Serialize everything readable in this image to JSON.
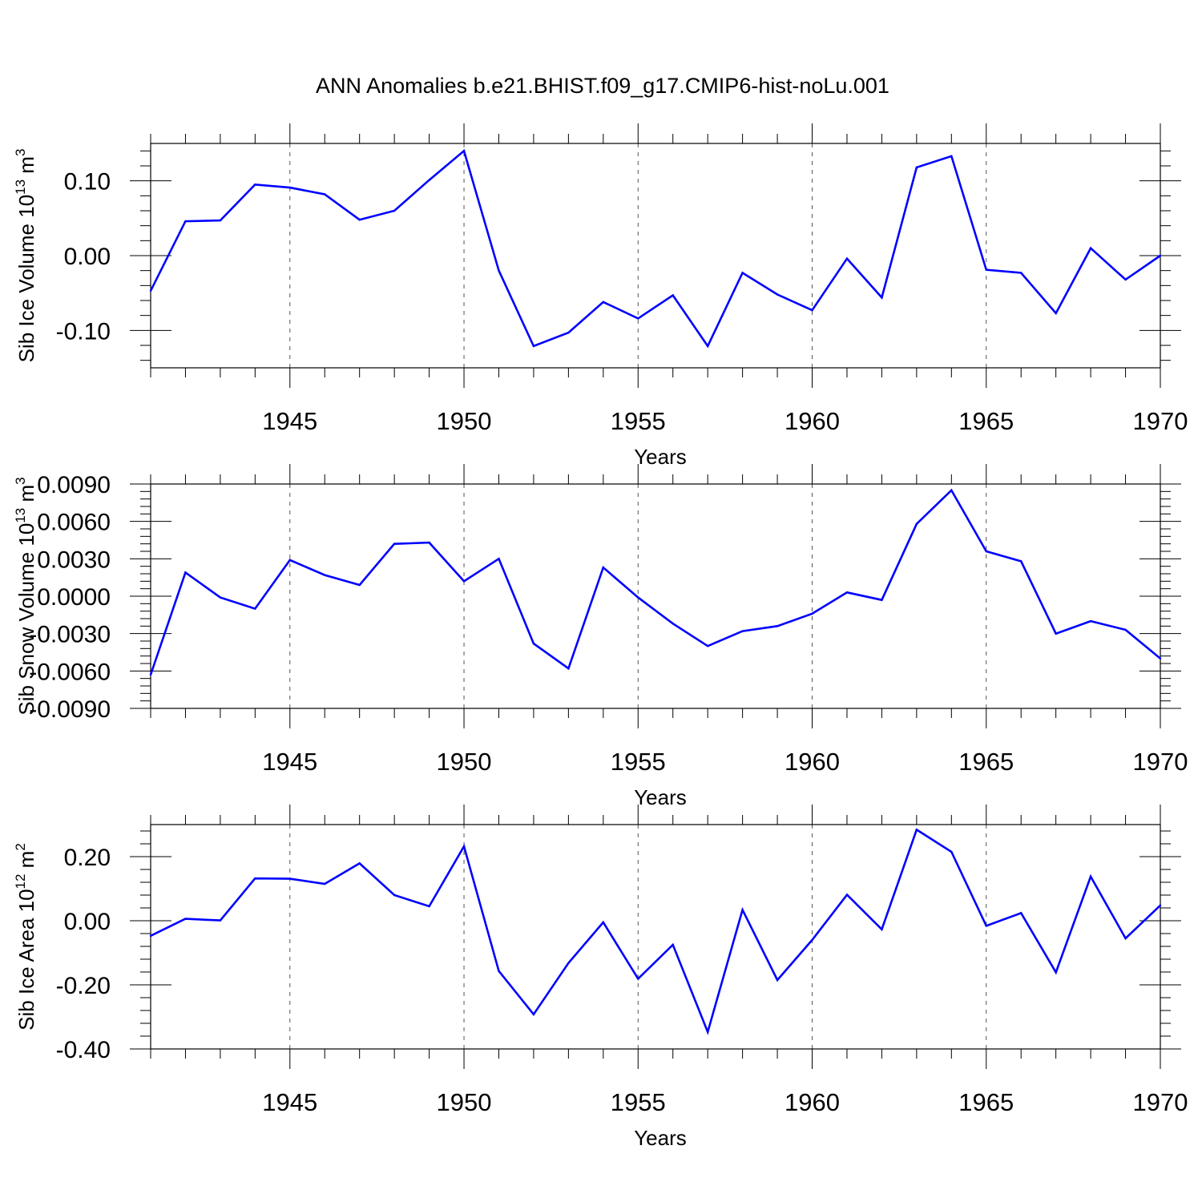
{
  "title": "ANN Anomalies b.e21.BHIST.f09_g17.CMIP6-hist-noLu.001",
  "line_color": "#0000ff",
  "chart_data": [
    {
      "type": "line",
      "ylabel_main": "Sib Ice Volume 10",
      "ylabel_exp": "13",
      "ylabel_unit": " m",
      "ylabel_unit_exp": "3",
      "xlabel": "Years",
      "xlim": [
        1941,
        1970
      ],
      "ylim": [
        -0.15,
        0.15
      ],
      "yticks": [
        0.1,
        0.0,
        -0.1
      ],
      "ytick_labels": [
        "0.10",
        "0.00",
        "-0.10"
      ],
      "xticks": [
        1945,
        1950,
        1955,
        1960,
        1965,
        1970
      ],
      "xtick_labels": [
        "1945",
        "1950",
        "1955",
        "1960",
        "1965",
        "1970"
      ],
      "grid_years": [
        1945,
        1950,
        1955,
        1960,
        1965
      ],
      "x": [
        1941,
        1942,
        1943,
        1944,
        1945,
        1946,
        1947,
        1948,
        1949,
        1950,
        1951,
        1952,
        1953,
        1954,
        1955,
        1956,
        1957,
        1958,
        1959,
        1960,
        1961,
        1962,
        1963,
        1964,
        1965,
        1966,
        1967,
        1968,
        1969,
        1970
      ],
      "values": [
        -0.047,
        0.046,
        0.047,
        0.095,
        0.091,
        0.082,
        0.048,
        0.06,
        0.101,
        0.14,
        -0.02,
        -0.121,
        -0.103,
        -0.062,
        -0.084,
        -0.053,
        -0.121,
        -0.023,
        -0.052,
        -0.073,
        -0.004,
        -0.056,
        0.118,
        0.133,
        -0.019,
        -0.023,
        -0.077,
        0.01,
        -0.032,
        0.0
      ]
    },
    {
      "type": "line",
      "ylabel_main": "Sib Snow Volume 10",
      "ylabel_exp": "13",
      "ylabel_unit": " m",
      "ylabel_unit_exp": "3",
      "xlabel": "Years",
      "xlim": [
        1941,
        1970
      ],
      "ylim": [
        -0.009,
        0.009
      ],
      "yticks": [
        0.009,
        0.006,
        0.003,
        0.0,
        -0.003,
        -0.006,
        -0.009
      ],
      "ytick_labels": [
        "0.0090",
        "0.0060",
        "0.0030",
        "0.0000",
        "-0.0030",
        "-0.0060",
        "-0.0090"
      ],
      "xticks": [
        1945,
        1950,
        1955,
        1960,
        1965,
        1970
      ],
      "xtick_labels": [
        "1945",
        "1950",
        "1955",
        "1960",
        "1965",
        "1970"
      ],
      "grid_years": [
        1945,
        1950,
        1955,
        1960,
        1965
      ],
      "x": [
        1941,
        1942,
        1943,
        1944,
        1945,
        1946,
        1947,
        1948,
        1949,
        1950,
        1951,
        1952,
        1953,
        1954,
        1955,
        1956,
        1957,
        1958,
        1959,
        1960,
        1961,
        1962,
        1963,
        1964,
        1965,
        1966,
        1967,
        1968,
        1969,
        1970
      ],
      "values": [
        -0.0063,
        0.0019,
        -0.0001,
        -0.001,
        0.0029,
        0.0017,
        0.0009,
        0.0042,
        0.0043,
        0.0012,
        0.003,
        -0.0038,
        -0.0058,
        0.0023,
        -0.0001,
        -0.0022,
        -0.004,
        -0.0028,
        -0.0024,
        -0.0014,
        0.0003,
        -0.0003,
        0.0058,
        0.0085,
        0.0036,
        0.0028,
        -0.003,
        -0.002,
        -0.0027,
        -0.005
      ]
    },
    {
      "type": "line",
      "ylabel_main": "Sib Ice Area 10",
      "ylabel_exp": "12",
      "ylabel_unit": " m",
      "ylabel_unit_exp": "2",
      "xlabel": "Years",
      "xlim": [
        1941,
        1970
      ],
      "ylim": [
        -0.4,
        0.3
      ],
      "yticks": [
        0.2,
        0.0,
        -0.2,
        -0.4
      ],
      "ytick_labels": [
        "0.20",
        "0.00",
        "-0.20",
        "-0.40"
      ],
      "xticks": [
        1945,
        1950,
        1955,
        1960,
        1965,
        1970
      ],
      "xtick_labels": [
        "1945",
        "1950",
        "1955",
        "1960",
        "1965",
        "1970"
      ],
      "grid_years": [
        1945,
        1950,
        1955,
        1960,
        1965
      ],
      "x": [
        1941,
        1942,
        1943,
        1944,
        1945,
        1946,
        1947,
        1948,
        1949,
        1950,
        1951,
        1952,
        1953,
        1954,
        1955,
        1956,
        1957,
        1958,
        1959,
        1960,
        1961,
        1962,
        1963,
        1964,
        1965,
        1966,
        1967,
        1968,
        1969,
        1970
      ],
      "values": [
        -0.047,
        0.006,
        0.001,
        0.132,
        0.131,
        0.115,
        0.179,
        0.08,
        0.045,
        0.232,
        -0.157,
        -0.292,
        -0.132,
        -0.005,
        -0.181,
        -0.075,
        -0.347,
        0.034,
        -0.185,
        -0.06,
        0.081,
        -0.027,
        0.284,
        0.215,
        -0.016,
        0.024,
        -0.161,
        0.138,
        -0.055,
        0.048
      ]
    }
  ]
}
